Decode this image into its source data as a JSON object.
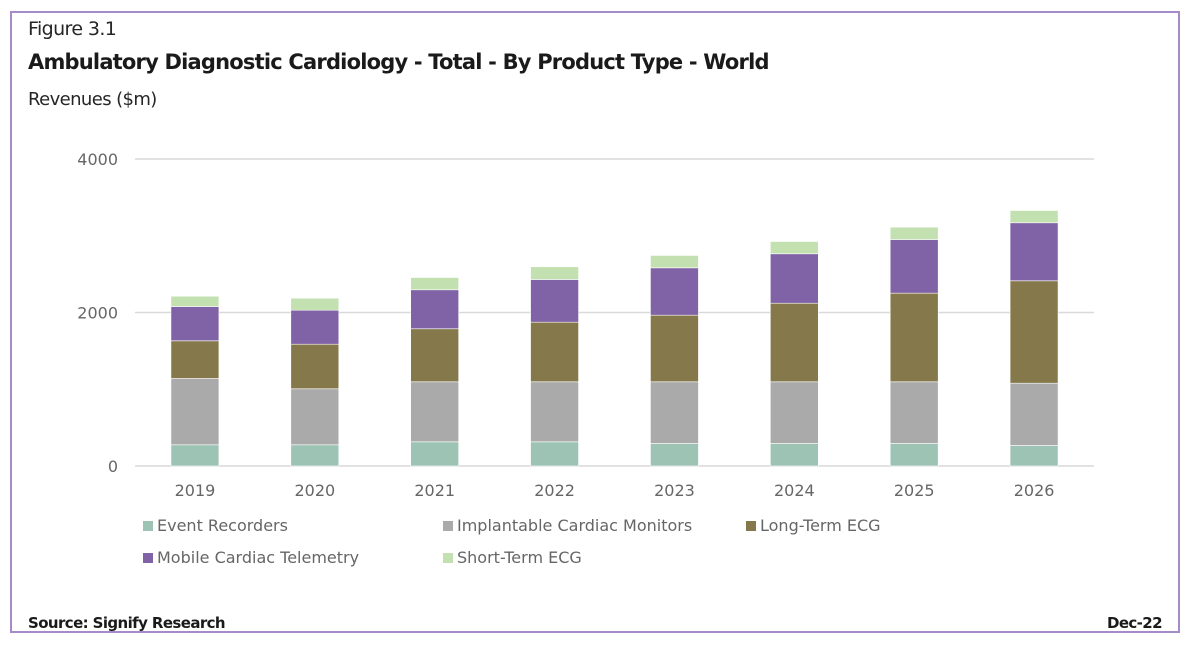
{
  "figure_label": "Figure 3.1",
  "footer": {
    "source": "Source: Signify Research",
    "date": "Dec-22"
  },
  "chart_data": {
    "type": "bar",
    "stacked": true,
    "title": "Ambulatory Diagnostic Cardiology - Total - By Product Type - World",
    "subtitle": "Revenues ($m)",
    "xlabel": "",
    "ylabel": "Revenues ($m)",
    "ylim": [
      0,
      4000
    ],
    "yticks": [
      0,
      2000,
      4000
    ],
    "grid": true,
    "legend_position": "bottom",
    "categories": [
      "2019",
      "2020",
      "2021",
      "2022",
      "2023",
      "2024",
      "2025",
      "2026"
    ],
    "series": [
      {
        "name": "Event Recorders",
        "color": "#9cc3b4",
        "values": [
          276,
          276,
          315,
          315,
          293,
          293,
          293,
          267
        ]
      },
      {
        "name": "Implantable Cardiac Monitors",
        "color": "#aaaaaa",
        "values": [
          864,
          730,
          782,
          782,
          804,
          804,
          804,
          812
        ]
      },
      {
        "name": "Long-Term ECG",
        "color": "#85794c",
        "values": [
          491,
          581,
          691,
          777,
          868,
          1024,
          1155,
          1334
        ]
      },
      {
        "name": "Mobile Cardiac Telemetry",
        "color": "#8063a6",
        "values": [
          447,
          443,
          508,
          556,
          617,
          644,
          699,
          756
        ]
      },
      {
        "name": "Short-Term ECG",
        "color": "#c2e0b0",
        "values": [
          134,
          156,
          160,
          166,
          161,
          160,
          161,
          160
        ]
      }
    ]
  }
}
